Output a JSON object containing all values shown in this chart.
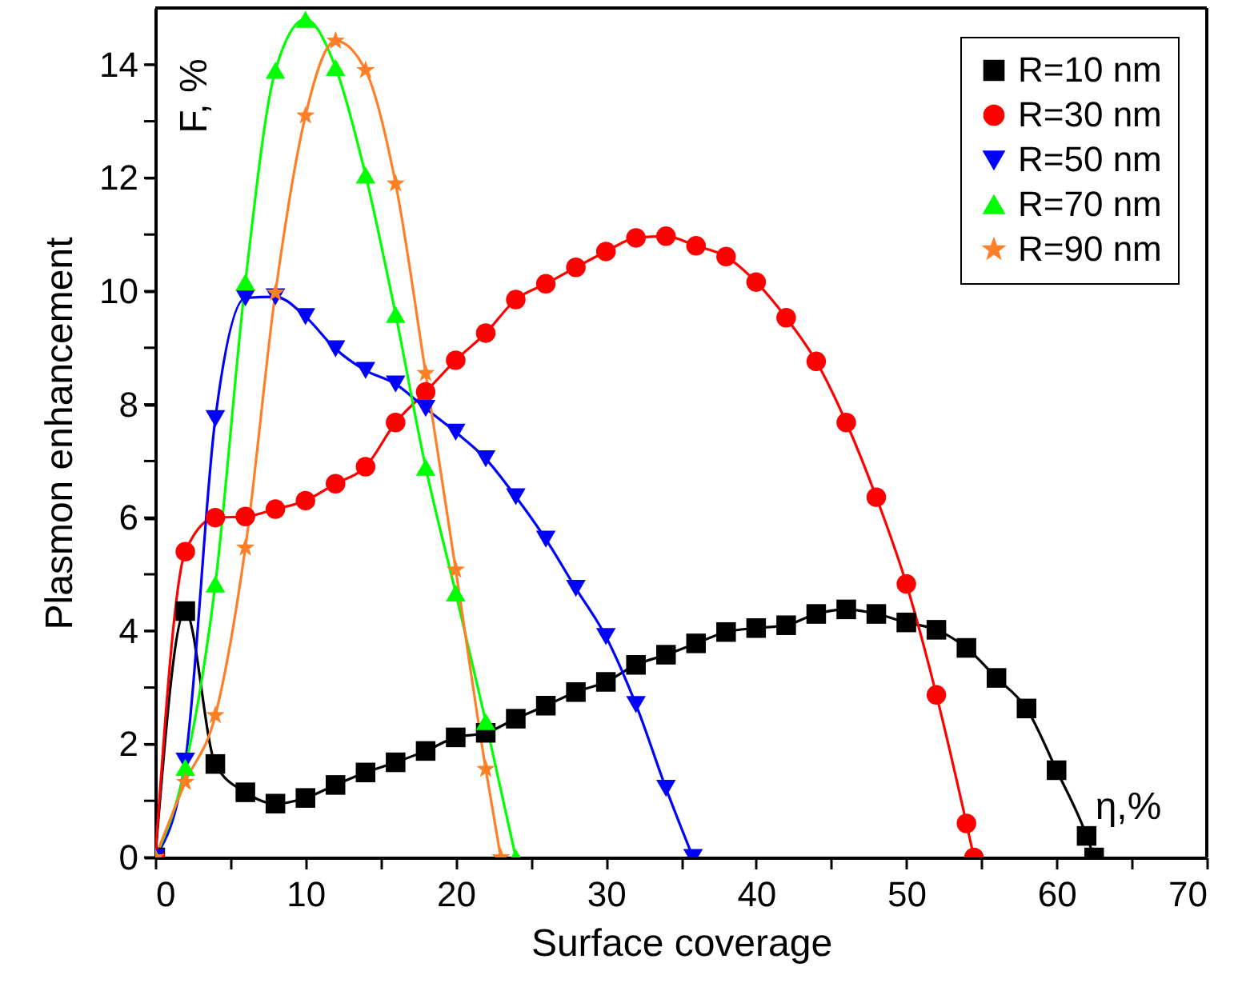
{
  "chart_data": {
    "type": "line",
    "xlabel": "Surface coverage",
    "ylabel": "Plasmon enhancement",
    "annotations": [
      "F, %",
      "η,%"
    ],
    "xlim": [
      0,
      70
    ],
    "ylim": [
      0,
      15
    ],
    "xticks": [
      0,
      {
        "value": 5,
        "label": null
      },
      10,
      {
        "value": 15,
        "label": null
      },
      20,
      {
        "value": 25,
        "label": null
      },
      30,
      {
        "value": 35,
        "label": null
      },
      40,
      {
        "value": 45,
        "label": null
      },
      50,
      {
        "value": 55,
        "label": null
      },
      60,
      {
        "value": 65,
        "label": null
      },
      70
    ],
    "yticks": [
      0,
      {
        "value": 1,
        "label": null
      },
      2,
      {
        "value": 3,
        "label": null
      },
      4,
      {
        "value": 5,
        "label": null
      },
      6,
      {
        "value": 7,
        "label": null
      },
      8,
      {
        "value": 9,
        "label": null
      },
      10,
      {
        "value": 11,
        "label": null
      },
      12,
      {
        "value": 13,
        "label": null
      },
      14
    ],
    "legend": "top right",
    "series": [
      {
        "name": "R=10 nm",
        "color": "#000000",
        "marker": "square",
        "x": [
          0,
          2,
          4,
          6,
          8,
          10,
          12,
          14,
          16,
          18,
          20,
          22,
          24,
          26,
          28,
          30,
          32,
          34,
          36,
          38,
          40,
          42,
          44,
          46,
          48,
          50,
          52,
          54,
          56,
          58,
          60,
          62,
          62.5
        ],
        "values": [
          0,
          4.35,
          1.65,
          1.15,
          0.95,
          1.05,
          1.28,
          1.5,
          1.68,
          1.88,
          2.12,
          2.2,
          2.45,
          2.68,
          2.92,
          3.1,
          3.4,
          3.58,
          3.78,
          3.98,
          4.05,
          4.1,
          4.3,
          4.38,
          4.3,
          4.15,
          4.02,
          3.7,
          3.17,
          2.63,
          1.54,
          0.38,
          0
        ]
      },
      {
        "name": "R=30 nm",
        "color": "#ff0000",
        "marker": "circle",
        "x": [
          0,
          2,
          4,
          6,
          8,
          10,
          12,
          14,
          16,
          18,
          20,
          22,
          24,
          26,
          28,
          30,
          32,
          34,
          36,
          38,
          40,
          42,
          44,
          46,
          48,
          50,
          52,
          54,
          54.5
        ],
        "values": [
          0,
          5.4,
          6.0,
          6.02,
          6.15,
          6.3,
          6.6,
          6.9,
          7.68,
          8.22,
          8.78,
          9.26,
          9.85,
          10.13,
          10.42,
          10.7,
          10.94,
          10.97,
          10.8,
          10.61,
          10.16,
          9.53,
          8.76,
          7.68,
          6.36,
          4.83,
          2.87,
          0.6,
          0
        ]
      },
      {
        "name": "R=50 nm",
        "color": "#0000ff",
        "marker": "triangle-down",
        "x": [
          0,
          2,
          4,
          6,
          8,
          10,
          12,
          14,
          16,
          18,
          20,
          22,
          24,
          26,
          28,
          30,
          32,
          34,
          35.8
        ],
        "values": [
          0,
          1.7,
          7.75,
          9.88,
          9.9,
          9.55,
          8.98,
          8.6,
          8.36,
          7.93,
          7.51,
          7.04,
          6.37,
          5.62,
          4.75,
          3.9,
          2.7,
          1.22,
          0
        ]
      },
      {
        "name": "R=70 nm",
        "color": "#00ff00",
        "marker": "triangle",
        "x": [
          0,
          2,
          4,
          6,
          8,
          10,
          12,
          14,
          16,
          18,
          20,
          22,
          24
        ],
        "values": [
          0,
          1.59,
          4.83,
          10.16,
          13.9,
          14.8,
          13.95,
          12.05,
          9.59,
          6.89,
          4.67,
          2.4,
          0
        ]
      },
      {
        "name": "R=90 nm",
        "color": "#ff7f27",
        "marker": "star",
        "x": [
          0,
          2,
          4,
          6,
          8,
          10,
          12,
          14,
          16,
          18,
          20,
          22,
          23
        ],
        "values": [
          0,
          1.33,
          2.51,
          5.47,
          9.97,
          13.1,
          14.42,
          13.9,
          11.9,
          8.55,
          5.08,
          1.56,
          0
        ]
      }
    ]
  }
}
